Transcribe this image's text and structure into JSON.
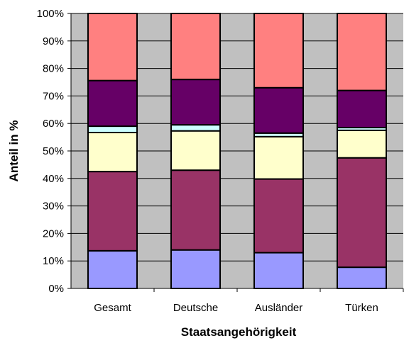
{
  "chart_data": {
    "type": "bar",
    "stacked": true,
    "percent_stacked": true,
    "xlabel": "Staatsangehörigkeit",
    "ylabel": "Anteil in %",
    "categories": [
      "Gesamt",
      "Deutsche",
      "Ausländer",
      "Türken"
    ],
    "ylim": [
      0,
      100
    ],
    "y_ticks": [
      "0%",
      "10%",
      "20%",
      "30%",
      "40%",
      "50%",
      "60%",
      "70%",
      "80%",
      "90%",
      "100%"
    ],
    "plot_background": "#c0c0c0",
    "grid": "horizontal",
    "legend": "none",
    "series": [
      {
        "color": "#9999ff",
        "values": [
          13.7,
          14.0,
          13.0,
          7.7
        ]
      },
      {
        "color": "#993366",
        "values": [
          28.8,
          29.0,
          26.8,
          39.8
        ]
      },
      {
        "color": "#ffffcc",
        "values": [
          14.2,
          14.3,
          15.4,
          10.0
        ]
      },
      {
        "color": "#ccffff",
        "values": [
          2.3,
          2.2,
          1.3,
          1.0
        ]
      },
      {
        "color": "#660066",
        "values": [
          16.6,
          16.5,
          16.5,
          13.5
        ]
      },
      {
        "color": "#ff8080",
        "values": [
          24.4,
          24.0,
          27.0,
          28.0
        ]
      }
    ]
  }
}
